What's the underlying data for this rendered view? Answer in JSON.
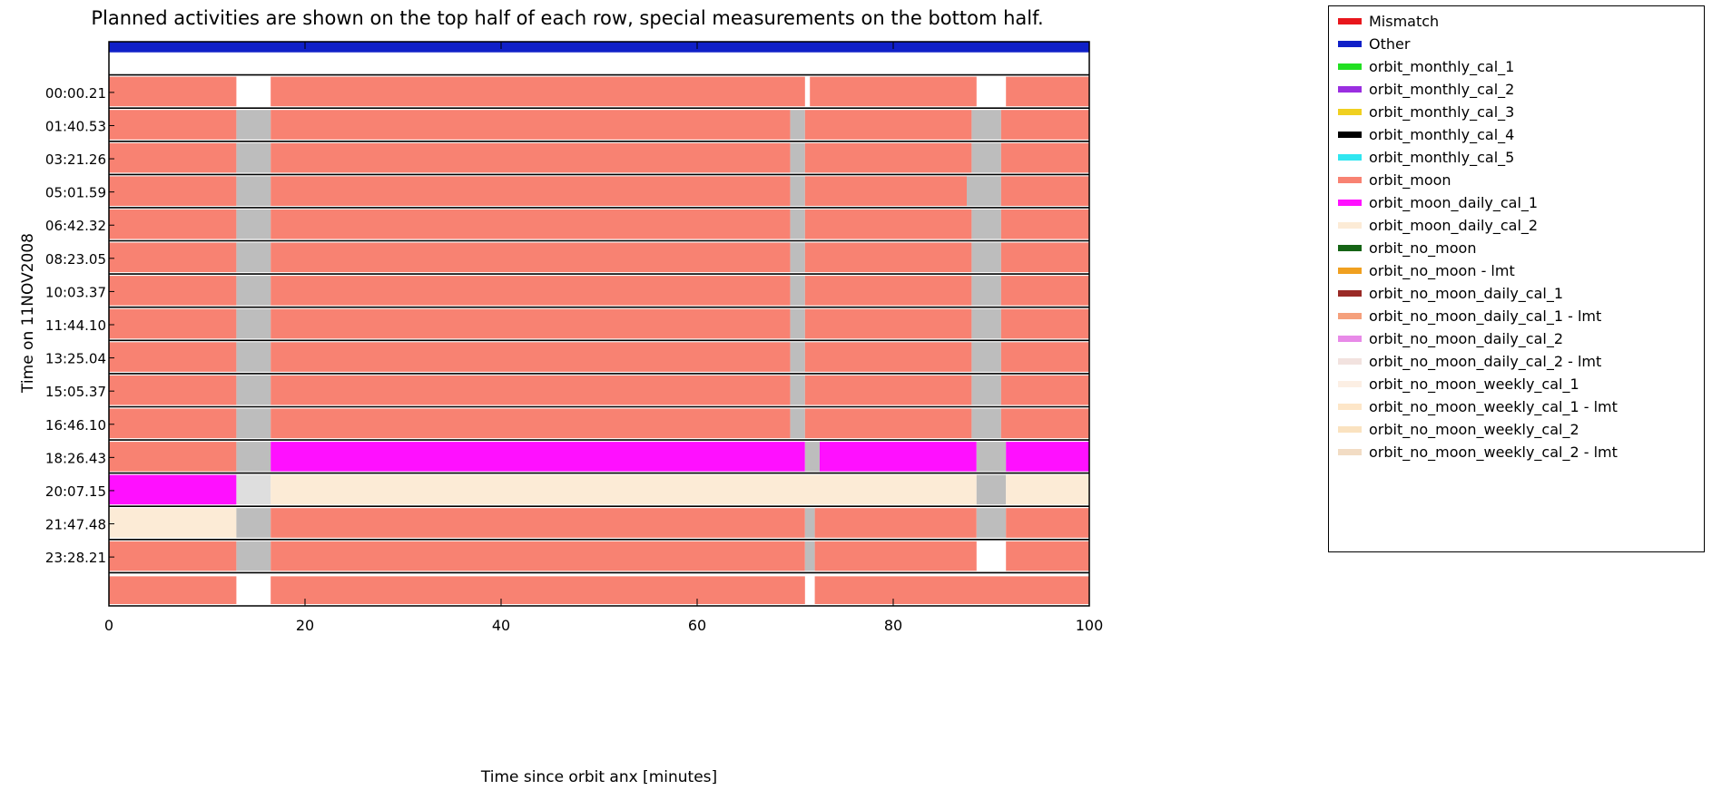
{
  "colors": {
    "background": "#ffffff",
    "frame": "#000000",
    "gap": "#bdbdbd",
    "gap_light": "#dedede"
  },
  "chart_data": {
    "type": "timeline",
    "title": "",
    "subtitle": "Planned activities are shown on the top half of each row, special measurements on the bottom half.",
    "xlabel": "Time since orbit anx [minutes]",
    "ylabel": "Time on 11NOV2008",
    "xlim": [
      0,
      100
    ],
    "x_ticks": [
      "0",
      "20",
      "40",
      "60",
      "80",
      "100"
    ],
    "x_tick_values": [
      0,
      20,
      40,
      60,
      80,
      100
    ],
    "y_tick_labels": [
      "00:00.21",
      "01:40.53",
      "03:21.26",
      "05:01.59",
      "06:42.32",
      "08:23.05",
      "10:03.37",
      "11:44.10",
      "13:25.04",
      "15:05.37",
      "16:46.10",
      "18:26.43",
      "20:07.15",
      "21:47.48",
      "23:28.21"
    ],
    "grid": false,
    "legend_position": "right",
    "legend": [
      {
        "label": "Mismatch",
        "color": "#e8161c"
      },
      {
        "label": "Other",
        "color": "#1020c8"
      },
      {
        "label": "orbit_monthly_cal_1",
        "color": "#22e022"
      },
      {
        "label": "orbit_monthly_cal_2",
        "color": "#9a2ee0"
      },
      {
        "label": "orbit_monthly_cal_3",
        "color": "#f0d020"
      },
      {
        "label": "orbit_monthly_cal_4",
        "color": "#000000"
      },
      {
        "label": "orbit_monthly_cal_5",
        "color": "#30e6f0"
      },
      {
        "label": "orbit_moon",
        "color": "#f88272"
      },
      {
        "label": "orbit_moon_daily_cal_1",
        "color": "#ff10ff"
      },
      {
        "label": "orbit_moon_daily_cal_2",
        "color": "#fcebd6"
      },
      {
        "label": "orbit_no_moon",
        "color": "#156415"
      },
      {
        "label": "orbit_no_moon - lmt",
        "color": "#f0a020"
      },
      {
        "label": "orbit_no_moon_daily_cal_1",
        "color": "#9a2a26"
      },
      {
        "label": "orbit_no_moon_daily_cal_1 - lmt",
        "color": "#f5a07c"
      },
      {
        "label": "orbit_no_moon_daily_cal_2",
        "color": "#e88ae8"
      },
      {
        "label": "orbit_no_moon_daily_cal_2 - lmt",
        "color": "#f2e2df"
      },
      {
        "label": "orbit_no_moon_weekly_cal_1",
        "color": "#fcefe4"
      },
      {
        "label": "orbit_no_moon_weekly_cal_1 - lmt",
        "color": "#fde6c8"
      },
      {
        "label": "orbit_no_moon_weekly_cal_2",
        "color": "#fae2c0"
      },
      {
        "label": "orbit_no_moon_weekly_cal_2 - lmt",
        "color": "#f2dcc4"
      }
    ],
    "row_count": 17,
    "rows": [
      {
        "segments": [
          [
            0,
            100,
            "Other"
          ]
        ]
      },
      {
        "segments": [
          [
            0,
            13,
            "orbit_moon"
          ],
          [
            16.5,
            71,
            "orbit_moon"
          ],
          [
            71.5,
            88.5,
            "orbit_moon"
          ],
          [
            91.5,
            100,
            "orbit_moon"
          ]
        ]
      },
      {
        "segments": [
          [
            0,
            13,
            "orbit_moon"
          ],
          [
            13,
            16.5,
            "gap"
          ],
          [
            16.5,
            69.5,
            "orbit_moon"
          ],
          [
            69.5,
            71,
            "gap"
          ],
          [
            71,
            88,
            "orbit_moon"
          ],
          [
            88,
            91,
            "gap"
          ],
          [
            91,
            100,
            "orbit_moon"
          ]
        ]
      },
      {
        "segments": [
          [
            0,
            13,
            "orbit_moon"
          ],
          [
            13,
            16.5,
            "gap"
          ],
          [
            16.5,
            69.5,
            "orbit_moon"
          ],
          [
            69.5,
            71,
            "gap"
          ],
          [
            71,
            88,
            "orbit_moon"
          ],
          [
            88,
            91,
            "gap"
          ],
          [
            91,
            100,
            "orbit_moon"
          ]
        ]
      },
      {
        "segments": [
          [
            0,
            13,
            "orbit_moon"
          ],
          [
            13,
            16.5,
            "gap"
          ],
          [
            16.5,
            69.5,
            "orbit_moon"
          ],
          [
            69.5,
            71,
            "gap"
          ],
          [
            71,
            87.5,
            "orbit_moon"
          ],
          [
            87.5,
            91,
            "gap"
          ],
          [
            91,
            100,
            "orbit_moon"
          ]
        ]
      },
      {
        "segments": [
          [
            0,
            13,
            "orbit_moon"
          ],
          [
            13,
            16.5,
            "gap"
          ],
          [
            16.5,
            69.5,
            "orbit_moon"
          ],
          [
            69.5,
            71,
            "gap"
          ],
          [
            71,
            88,
            "orbit_moon"
          ],
          [
            88,
            91,
            "gap"
          ],
          [
            91,
            100,
            "orbit_moon"
          ]
        ]
      },
      {
        "segments": [
          [
            0,
            13,
            "orbit_moon"
          ],
          [
            13,
            16.5,
            "gap"
          ],
          [
            16.5,
            69.5,
            "orbit_moon"
          ],
          [
            69.5,
            71,
            "gap"
          ],
          [
            71,
            88,
            "orbit_moon"
          ],
          [
            88,
            91,
            "gap"
          ],
          [
            91,
            100,
            "orbit_moon"
          ]
        ]
      },
      {
        "segments": [
          [
            0,
            13,
            "orbit_moon"
          ],
          [
            13,
            16.5,
            "gap"
          ],
          [
            16.5,
            69.5,
            "orbit_moon"
          ],
          [
            69.5,
            71,
            "gap"
          ],
          [
            71,
            88,
            "orbit_moon"
          ],
          [
            88,
            91,
            "gap"
          ],
          [
            91,
            100,
            "orbit_moon"
          ]
        ]
      },
      {
        "segments": [
          [
            0,
            13,
            "orbit_moon"
          ],
          [
            13,
            16.5,
            "gap"
          ],
          [
            16.5,
            69.5,
            "orbit_moon"
          ],
          [
            69.5,
            71,
            "gap"
          ],
          [
            71,
            88,
            "orbit_moon"
          ],
          [
            88,
            91,
            "gap"
          ],
          [
            91,
            100,
            "orbit_moon"
          ]
        ]
      },
      {
        "segments": [
          [
            0,
            13,
            "orbit_moon"
          ],
          [
            13,
            16.5,
            "gap"
          ],
          [
            16.5,
            69.5,
            "orbit_moon"
          ],
          [
            69.5,
            71,
            "gap"
          ],
          [
            71,
            88,
            "orbit_moon"
          ],
          [
            88,
            91,
            "gap"
          ],
          [
            91,
            100,
            "orbit_moon"
          ]
        ]
      },
      {
        "segments": [
          [
            0,
            13,
            "orbit_moon"
          ],
          [
            13,
            16.5,
            "gap"
          ],
          [
            16.5,
            69.5,
            "orbit_moon"
          ],
          [
            69.5,
            71,
            "gap"
          ],
          [
            71,
            88,
            "orbit_moon"
          ],
          [
            88,
            91,
            "gap"
          ],
          [
            91,
            100,
            "orbit_moon"
          ]
        ]
      },
      {
        "segments": [
          [
            0,
            13,
            "orbit_moon"
          ],
          [
            13,
            16.5,
            "gap"
          ],
          [
            16.5,
            69.5,
            "orbit_moon"
          ],
          [
            69.5,
            71,
            "gap"
          ],
          [
            71,
            88,
            "orbit_moon"
          ],
          [
            88,
            91,
            "gap"
          ],
          [
            91,
            100,
            "orbit_moon"
          ]
        ]
      },
      {
        "segments": [
          [
            0,
            13,
            "orbit_moon"
          ],
          [
            13,
            16.5,
            "gap"
          ],
          [
            16.5,
            71,
            "orbit_moon_daily_cal_1"
          ],
          [
            71,
            72.5,
            "gap"
          ],
          [
            72.5,
            88.5,
            "orbit_moon_daily_cal_1"
          ],
          [
            88.5,
            91.5,
            "gap"
          ],
          [
            91.5,
            100,
            "orbit_moon_daily_cal_1"
          ]
        ]
      },
      {
        "segments": [
          [
            0,
            13,
            "orbit_moon_daily_cal_1"
          ],
          [
            13,
            16.5,
            "gap_light"
          ],
          [
            16.5,
            88.5,
            "orbit_moon_daily_cal_2"
          ],
          [
            88.5,
            91.5,
            "gap"
          ],
          [
            91.5,
            100,
            "orbit_moon_daily_cal_2"
          ]
        ]
      },
      {
        "segments": [
          [
            0,
            13,
            "orbit_moon_daily_cal_2"
          ],
          [
            13,
            16.5,
            "gap"
          ],
          [
            16.5,
            71,
            "orbit_moon"
          ],
          [
            71,
            72,
            "gap"
          ],
          [
            72,
            88.5,
            "orbit_moon"
          ],
          [
            88.5,
            91.5,
            "gap"
          ],
          [
            91.5,
            100,
            "orbit_moon"
          ]
        ]
      },
      {
        "segments": [
          [
            0,
            13,
            "orbit_moon"
          ],
          [
            13,
            16.5,
            "gap"
          ],
          [
            16.5,
            71,
            "orbit_moon"
          ],
          [
            71,
            72,
            "gap"
          ],
          [
            72,
            88.5,
            "orbit_moon"
          ],
          [
            91.5,
            100,
            "orbit_moon"
          ]
        ]
      },
      {
        "segments": [
          [
            0,
            13,
            "orbit_moon"
          ],
          [
            16.5,
            71,
            "orbit_moon"
          ],
          [
            72,
            100,
            "orbit_moon"
          ]
        ]
      }
    ]
  }
}
